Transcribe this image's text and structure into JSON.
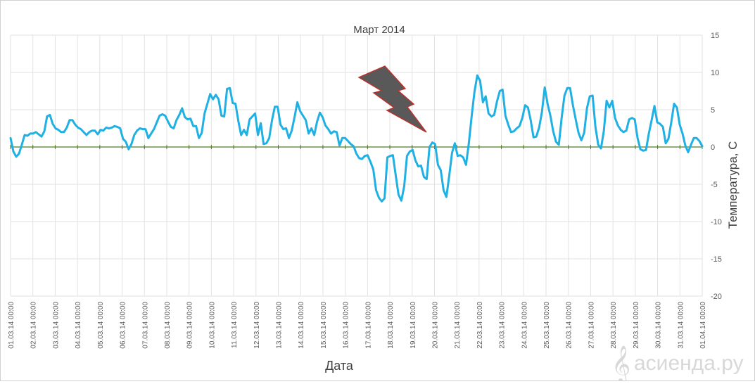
{
  "chart_data": {
    "type": "line",
    "title": "Март 2014",
    "xlabel": "Дата",
    "ylabel": "Температура, С",
    "ylim": [
      -20,
      15
    ],
    "yticks": [
      15,
      10,
      5,
      0,
      -5,
      -10,
      -15,
      -20
    ],
    "grid": true,
    "legend": "none",
    "colors": {
      "line": "#1fb0e4",
      "zero_line": "#4e7a26",
      "grid": "#e2e2e2",
      "bolt": "#595959",
      "bolt_outline": "#c0302a"
    },
    "x_tick_labels": [
      "01.03.14 00:00",
      "02.03.14 00:00",
      "03.03.14 00:00",
      "04.03.14 00:00",
      "05.03.14 00:00",
      "06.03.14 00:00",
      "07.03.14 00:00",
      "08.03.14 00:00",
      "09.03.14 00:00",
      "10.03.14 00:00",
      "11.03.14 00:00",
      "12.03.14 00:00",
      "13.03.14 00:00",
      "14.03.14 00:00",
      "15.03.14 00:00",
      "16.03.14 00:00",
      "17.03.14 00:00",
      "18.03.14 00:00",
      "19.03.14 00:00",
      "20.03.14 00:00",
      "21.03.14 00:00",
      "22.03.14 00:00",
      "23.03.14 00:00",
      "24.03.14 00:00",
      "25.03.14 00:00",
      "26.03.14 00:00",
      "27.03.14 00:00",
      "28.03.14 00:00",
      "29.03.14 00:00",
      "30.03.14 00:00",
      "31.03.14 00:00",
      "01.04.14 00:00"
    ],
    "series": [
      {
        "values": [
          1.2,
          -0.6,
          -1.3,
          -0.9,
          0.3,
          1.6,
          1.5,
          1.8,
          1.8,
          2.0,
          1.7,
          1.4,
          2.1,
          4.1,
          4.3,
          3.1,
          2.5,
          2.3,
          2.0,
          2.0,
          2.6,
          3.6,
          3.6,
          3.0,
          2.6,
          2.4,
          2.0,
          1.6,
          2.0,
          2.2,
          2.2,
          1.7,
          2.3,
          2.2,
          2.6,
          2.5,
          2.6,
          2.8,
          2.7,
          2.5,
          1.1,
          0.7,
          -0.3,
          0.4,
          1.6,
          2.2,
          2.5,
          2.4,
          2.4,
          1.2,
          1.8,
          2.4,
          3.3,
          4.2,
          4.4,
          4.2,
          3.4,
          2.7,
          2.5,
          3.6,
          4.3,
          5.2,
          4.0,
          3.7,
          3.8,
          2.8,
          2.8,
          1.2,
          1.9,
          4.5,
          5.8,
          7.1,
          6.4,
          7.0,
          6.4,
          4.2,
          4.1,
          7.8,
          7.9,
          5.9,
          5.8,
          3.5,
          1.6,
          2.3,
          1.6,
          3.7,
          4.1,
          4.5,
          1.6,
          3.2,
          0.4,
          0.5,
          1.2,
          3.6,
          5.4,
          5.4,
          3.0,
          2.4,
          2.5,
          1.2,
          2.2,
          4.0,
          6.0,
          4.8,
          4.2,
          3.6,
          1.8,
          2.5,
          1.6,
          3.4,
          4.6,
          4.0,
          2.9,
          2.4,
          1.8,
          2.1,
          2.0,
          0.2,
          1.2,
          1.2,
          0.8,
          0.4,
          0.1,
          -0.9,
          -1.5,
          -1.6,
          -1.2,
          -1.1,
          -2.0,
          -3.0,
          -5.8,
          -6.8,
          -7.3,
          -6.9,
          -1.4,
          -1.2,
          -1.1,
          -3.8,
          -6.4,
          -7.2,
          -5.3,
          -1.2,
          -0.6,
          -0.4,
          -1.8,
          -2.6,
          -2.5,
          -4.0,
          -4.3,
          0.0,
          0.6,
          0.4,
          -2.4,
          -3.1,
          -5.8,
          -6.7,
          -3.9,
          -0.8,
          0.5,
          -1.2,
          -1.1,
          -1.4,
          -2.4,
          0.5,
          4.1,
          7.4,
          9.6,
          8.9,
          6.0,
          6.8,
          4.5,
          4.1,
          4.3,
          6.1,
          7.5,
          7.7,
          4.2,
          3.0,
          2.0,
          2.1,
          2.5,
          2.8,
          3.9,
          5.6,
          5.3,
          3.6,
          1.3,
          1.4,
          2.6,
          4.7,
          8.0,
          5.8,
          4.2,
          2.1,
          0.7,
          0.3,
          3.9,
          6.9,
          7.9,
          7.9,
          5.6,
          3.7,
          1.9,
          0.9,
          1.9,
          5.2,
          6.8,
          6.9,
          2.7,
          0.3,
          -0.2,
          2.1,
          6.2,
          5.3,
          6.2,
          3.9,
          2.9,
          2.3,
          2.0,
          2.2,
          3.7,
          3.9,
          3.7,
          1.2,
          -0.3,
          -0.5,
          -0.4,
          1.8,
          3.6,
          5.5,
          3.3,
          3.1,
          2.7,
          0.5,
          1.1,
          3.3,
          5.8,
          5.3,
          3.0,
          1.8,
          0.2,
          -0.7,
          0.3,
          1.2,
          1.2,
          0.8,
          0.1
        ]
      }
    ]
  },
  "watermark": {
    "text": "асиенда.ру"
  },
  "decoration": {
    "icon": "lightning-bolt-icon"
  }
}
